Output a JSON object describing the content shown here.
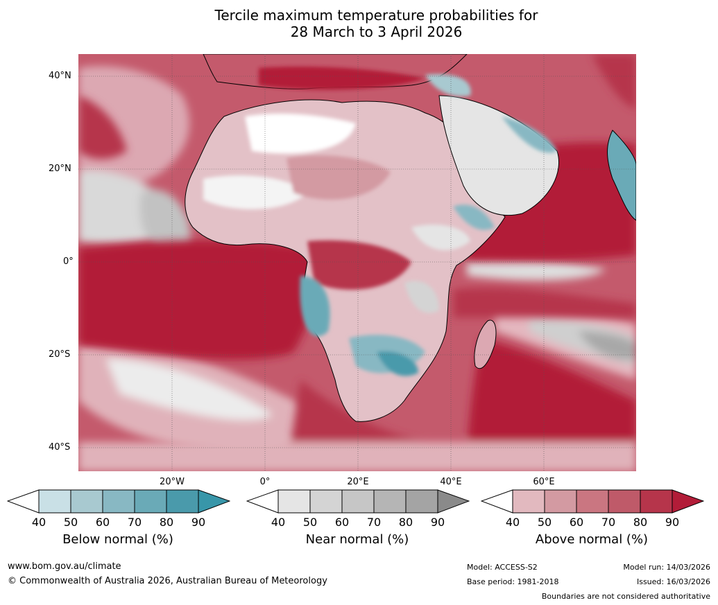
{
  "title_line1": "Tercile maximum temperature probabilities for",
  "title_line2": "28 March to 3 April 2026",
  "lat_labels": [
    "40°N",
    "20°N",
    "0°",
    "20°S",
    "40°S"
  ],
  "lon_labels": [
    "20°W",
    "0°",
    "20°E",
    "40°E",
    "60°E"
  ],
  "colorbars": [
    {
      "label": "Below normal (%)",
      "ticks": [
        "40",
        "50",
        "60",
        "70",
        "80",
        "90"
      ],
      "colors": [
        "#c9e0e6",
        "#a8c9d0",
        "#88b8c3",
        "#6aaab7",
        "#4a9aab",
        "#3896a9"
      ]
    },
    {
      "label": "Near normal (%)",
      "ticks": [
        "40",
        "50",
        "60",
        "70",
        "80",
        "90"
      ],
      "colors": [
        "#e5e5e5",
        "#d4d4d4",
        "#c6c6c6",
        "#b5b5b5",
        "#a4a4a4",
        "#8a8a8a"
      ]
    },
    {
      "label": "Above normal (%)",
      "ticks": [
        "40",
        "50",
        "60",
        "70",
        "80",
        "90"
      ],
      "colors": [
        "#e2b9bf",
        "#d39aa2",
        "#ca7681",
        "#bf5a69",
        "#b6354b",
        "#b21c38"
      ]
    }
  ],
  "footer": {
    "website": "www.bom.gov.au/climate",
    "copyright": "© Commonwealth of Australia 2026, Australian Bureau of Meteorology",
    "model": "Model: ACCESS-S2",
    "base_period": "Base period: 1981-2018",
    "model_run": "Model run: 14/03/2026",
    "issued": "Issued: 16/03/2026",
    "disclaimer": "Boundaries are not considered authoritative"
  }
}
